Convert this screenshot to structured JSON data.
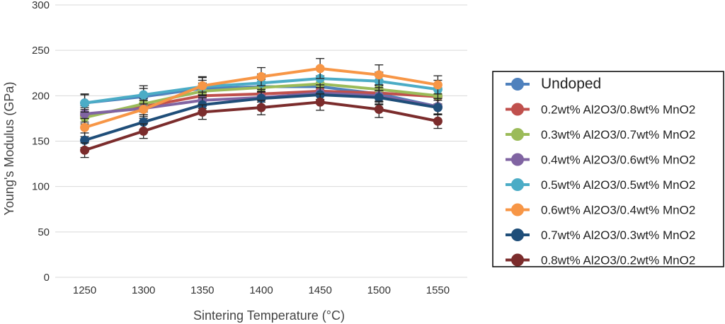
{
  "chart_data": {
    "type": "line",
    "title": "",
    "xlabel": "Sintering Temperature (°C)",
    "ylabel": "Young's Modulus (GPa)",
    "x": [
      1250,
      1300,
      1350,
      1400,
      1450,
      1500,
      1550
    ],
    "ylim": [
      0,
      300
    ],
    "yticks": [
      0,
      50,
      100,
      150,
      200,
      250,
      300
    ],
    "grid": true,
    "legend_position": "right",
    "error_bars": true,
    "series": [
      {
        "name": "Undoped",
        "color": "#4f81bd",
        "values": [
          192,
          199,
          208,
          210,
          210,
          202,
          188
        ],
        "error": [
          9,
          9,
          9,
          9,
          9,
          9,
          9
        ]
      },
      {
        "name": "0.2wt% Al2O3/0.8wt% MnO2",
        "color": "#c0504d",
        "values": [
          178,
          188,
          200,
          202,
          205,
          203,
          199
        ],
        "error": [
          9,
          9,
          9,
          9,
          9,
          9,
          9
        ]
      },
      {
        "name": "0.3wt% Al2O3/0.7wt% MnO2",
        "color": "#9bbb59",
        "values": [
          176,
          191,
          205,
          209,
          213,
          207,
          200
        ],
        "error": [
          9,
          9,
          9,
          9,
          9,
          9,
          9
        ]
      },
      {
        "name": "0.4wt% Al2O3/0.6wt% MnO2",
        "color": "#8064a2",
        "values": [
          180,
          186,
          195,
          198,
          203,
          200,
          188
        ],
        "error": [
          9,
          9,
          9,
          9,
          9,
          9,
          9
        ]
      },
      {
        "name": "0.5wt% Al2O3/0.5wt% MnO2",
        "color": "#4bacc6",
        "values": [
          192,
          201,
          210,
          214,
          219,
          216,
          207
        ],
        "error": [
          10,
          10,
          10,
          10,
          10,
          10,
          10
        ]
      },
      {
        "name": "0.6wt% Al2O3/0.4wt% MnO2",
        "color": "#f79646",
        "values": [
          165,
          185,
          211,
          221,
          230,
          223,
          212
        ],
        "error": [
          10,
          10,
          10,
          10,
          11,
          11,
          10
        ]
      },
      {
        "name": "0.7wt% Al2O3/0.3wt% MnO2",
        "color": "#1f4e79",
        "values": [
          151,
          171,
          190,
          197,
          201,
          198,
          187
        ],
        "error": [
          8,
          8,
          8,
          8,
          8,
          8,
          8
        ]
      },
      {
        "name": "0.8wt% Al2O3/0.2wt% MnO2",
        "color": "#7b2c2c",
        "values": [
          140,
          161,
          182,
          187,
          193,
          185,
          172
        ],
        "error": [
          8,
          8,
          8,
          8,
          9,
          9,
          8
        ]
      }
    ]
  }
}
